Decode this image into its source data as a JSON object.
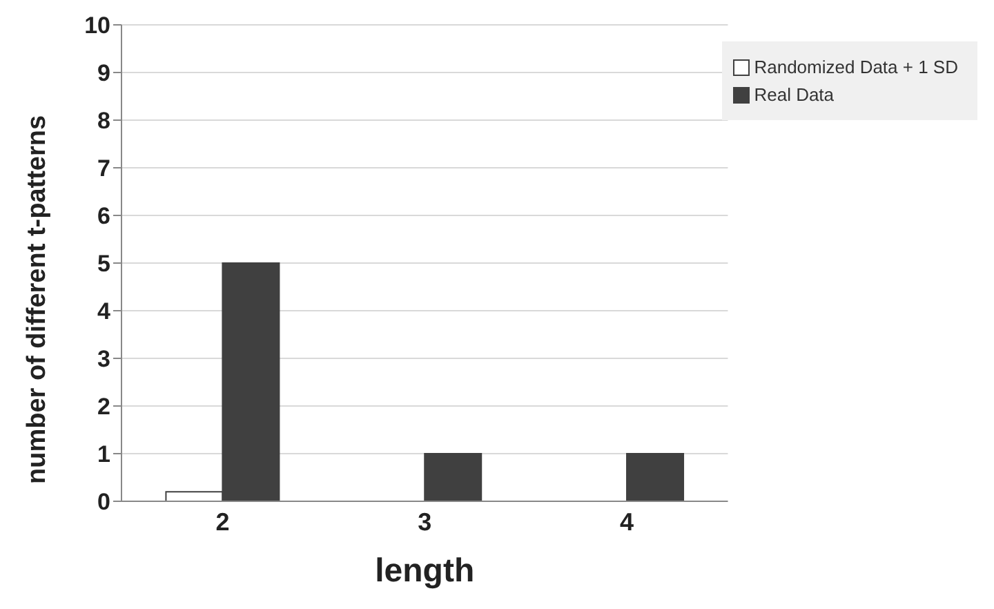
{
  "chart_data": {
    "type": "bar",
    "xlabel": "length",
    "ylabel": "number of different t-patterns",
    "categories": [
      "2",
      "3",
      "4"
    ],
    "series": [
      {
        "name": "Randomized Data + 1 SD",
        "color": "#ffffff",
        "values": [
          0.2,
          0,
          0
        ]
      },
      {
        "name": "Real Data",
        "color": "#404040",
        "values": [
          5,
          1,
          1
        ]
      }
    ],
    "ylim": [
      0,
      10
    ],
    "yticks": [
      0,
      1,
      2,
      3,
      4,
      5,
      6,
      7,
      8,
      9,
      10
    ],
    "grid": "y",
    "legend": "top right"
  }
}
